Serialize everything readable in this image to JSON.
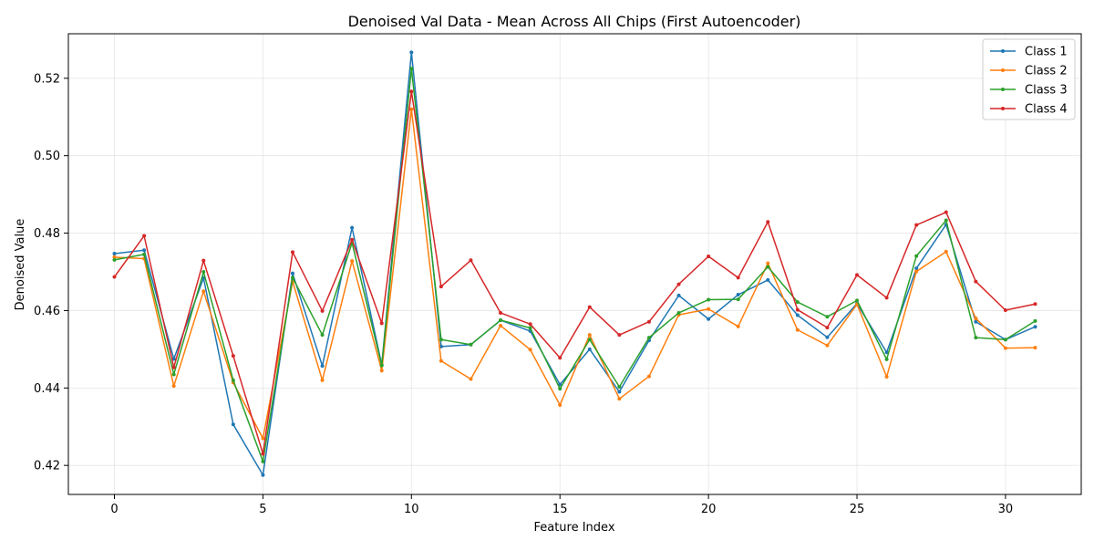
{
  "chart_data": {
    "type": "line",
    "title": "Denoised Val Data - Mean Across All Chips (First Autoencoder)",
    "xlabel": "Feature Index",
    "ylabel": "Denoised Value",
    "xlim": [
      -1.55,
      32.55
    ],
    "ylim": [
      0.4125,
      0.5315
    ],
    "xticks": [
      0,
      5,
      10,
      15,
      20,
      25,
      30
    ],
    "yticks": [
      0.42,
      0.44,
      0.46,
      0.48,
      0.5,
      0.52
    ],
    "ytick_labels": [
      "0.42",
      "0.44",
      "0.46",
      "0.48",
      "0.50",
      "0.52"
    ],
    "grid": true,
    "legend_position": "top-right",
    "x": [
      0,
      1,
      2,
      3,
      4,
      5,
      6,
      7,
      8,
      9,
      10,
      11,
      12,
      13,
      14,
      15,
      16,
      17,
      18,
      19,
      20,
      21,
      22,
      23,
      24,
      25,
      26,
      27,
      28,
      29,
      30,
      31
    ],
    "series": [
      {
        "name": "Class 1",
        "color": "#1f77b4",
        "values": [
          0.4747,
          0.4756,
          0.4475,
          0.4684,
          0.4306,
          0.4175,
          0.4696,
          0.4457,
          0.4814,
          0.446,
          0.5267,
          0.4507,
          0.4512,
          0.4575,
          0.4547,
          0.4409,
          0.45,
          0.439,
          0.4523,
          0.4639,
          0.4578,
          0.4641,
          0.4679,
          0.4588,
          0.4531,
          0.4618,
          0.4492,
          0.4709,
          0.4822,
          0.4571,
          0.4525,
          0.4558
        ]
      },
      {
        "name": "Class 2",
        "color": "#ff7f0e",
        "values": [
          0.4738,
          0.4734,
          0.4405,
          0.465,
          0.4414,
          0.427,
          0.4675,
          0.442,
          0.4728,
          0.4445,
          0.512,
          0.447,
          0.4423,
          0.4561,
          0.4499,
          0.4356,
          0.4537,
          0.4372,
          0.443,
          0.4589,
          0.4604,
          0.4559,
          0.4722,
          0.455,
          0.451,
          0.4616,
          0.4429,
          0.4701,
          0.4752,
          0.458,
          0.4503,
          0.4504
        ]
      },
      {
        "name": "Class 3",
        "color": "#2ca02c",
        "values": [
          0.4731,
          0.4745,
          0.4435,
          0.47,
          0.442,
          0.421,
          0.4685,
          0.4537,
          0.4775,
          0.4458,
          0.5225,
          0.4525,
          0.4512,
          0.4575,
          0.4555,
          0.4398,
          0.4525,
          0.4403,
          0.453,
          0.4594,
          0.4628,
          0.4629,
          0.4713,
          0.4622,
          0.4584,
          0.4626,
          0.4474,
          0.4741,
          0.4833,
          0.453,
          0.4525,
          0.4573
        ]
      },
      {
        "name": "Class 4",
        "color": "#d62728",
        "values": [
          0.4687,
          0.4793,
          0.4453,
          0.4729,
          0.4483,
          0.423,
          0.4751,
          0.4599,
          0.4783,
          0.4567,
          0.5166,
          0.4662,
          0.473,
          0.4594,
          0.4565,
          0.4478,
          0.4609,
          0.4537,
          0.4571,
          0.4668,
          0.474,
          0.4685,
          0.4829,
          0.4602,
          0.4556,
          0.4692,
          0.4633,
          0.4821,
          0.4854,
          0.4675,
          0.4601,
          0.4617
        ]
      }
    ]
  }
}
